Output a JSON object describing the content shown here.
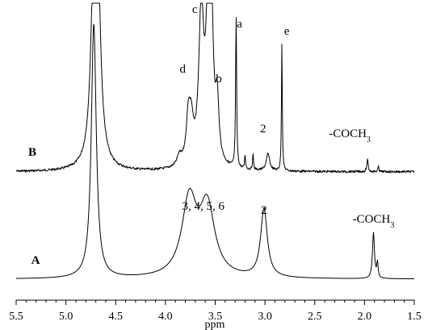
{
  "chart_data": {
    "type": "line",
    "xlabel": "ppm",
    "xlim": [
      5.5,
      1.5
    ],
    "x_reversed": true,
    "x_ticks": [
      "5.5",
      "5.0",
      "4.5",
      "4.0",
      "3.5",
      "3.0",
      "2.5",
      "2.0",
      "1.5"
    ],
    "grid": false,
    "legend": "none",
    "series": [
      {
        "name": "B",
        "baseline_intensity": 0,
        "peaks": [
          {
            "x": 4.72,
            "height": 1.0,
            "width": 0.035
          },
          {
            "x": 4.68,
            "height": 0.97,
            "width": 0.035
          },
          {
            "x": 3.86,
            "height": 0.06,
            "width": 0.03
          },
          {
            "x": 3.77,
            "height": 0.27,
            "width": 0.025
          },
          {
            "x": 3.74,
            "height": 0.2,
            "width": 0.025
          },
          {
            "x": 3.64,
            "height": 0.9,
            "width": 0.03
          },
          {
            "x": 3.57,
            "height": 0.85,
            "width": 0.025
          },
          {
            "x": 3.54,
            "height": 0.8,
            "width": 0.025
          },
          {
            "x": 3.48,
            "height": 0.33,
            "width": 0.02
          },
          {
            "x": 3.29,
            "height": 0.9,
            "width": 0.006
          },
          {
            "x": 3.2,
            "height": 0.08,
            "width": 0.006
          },
          {
            "x": 3.12,
            "height": 0.09,
            "width": 0.006
          },
          {
            "x": 2.97,
            "height": 0.1,
            "width": 0.02
          },
          {
            "x": 2.83,
            "height": 0.76,
            "width": 0.005
          },
          {
            "x": 1.97,
            "height": 0.07,
            "width": 0.008
          },
          {
            "x": 1.86,
            "height": 0.03,
            "width": 0.006
          }
        ]
      },
      {
        "name": "A",
        "baseline_intensity": 0,
        "peaks": [
          {
            "x": 4.72,
            "height": 1.0,
            "width": 0.03
          },
          {
            "x": 3.76,
            "height": 0.3,
            "width": 0.09
          },
          {
            "x": 3.58,
            "height": 0.27,
            "width": 0.09
          },
          {
            "x": 3.01,
            "height": 0.27,
            "width": 0.04
          },
          {
            "x": 1.91,
            "height": 0.18,
            "width": 0.012
          },
          {
            "x": 1.87,
            "height": 0.06,
            "width": 0.008
          }
        ]
      }
    ],
    "annotations": [
      {
        "series": "B",
        "text": "B"
      },
      {
        "series": "B",
        "text": "a",
        "x": 3.29
      },
      {
        "series": "B",
        "text": "b",
        "x": 3.48
      },
      {
        "series": "B",
        "text": "c",
        "x": 3.64
      },
      {
        "series": "B",
        "text": "d",
        "x": 3.77
      },
      {
        "series": "B",
        "text": "e",
        "x": 2.83
      },
      {
        "series": "B",
        "text": "2",
        "x": 2.97
      },
      {
        "series": "B",
        "text": "-COCH",
        "sub": "3",
        "x": 1.97
      },
      {
        "series": "A",
        "text": "A"
      },
      {
        "series": "A",
        "text": "3, 4, 5, 6",
        "x": 3.62
      },
      {
        "series": "A",
        "text": "2",
        "x": 3.01
      },
      {
        "series": "A",
        "text": "-COCH",
        "sub": "3",
        "x": 1.91
      }
    ]
  }
}
